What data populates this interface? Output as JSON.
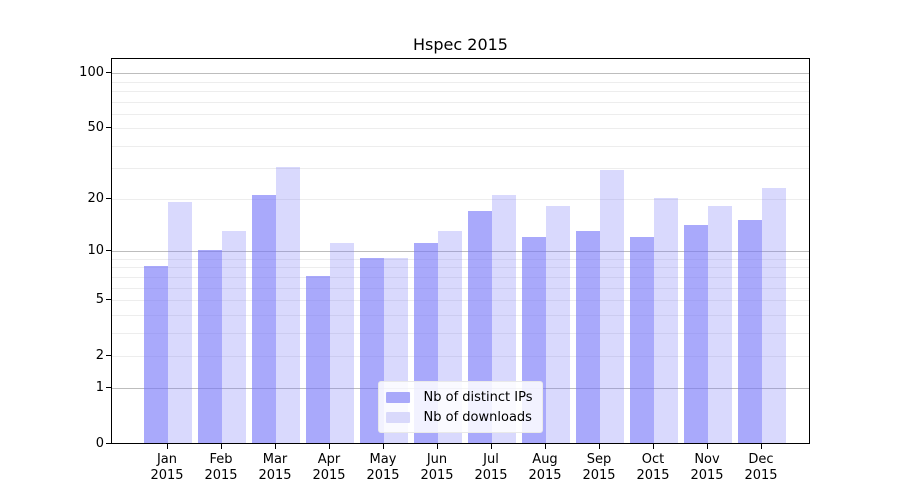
{
  "title": "Hspec 2015",
  "colors": {
    "series1_fill": "rgba(116,116,249,0.62)",
    "series1_solid": "#a9a9fa",
    "series2_fill": "rgba(116,116,249,0.27)",
    "series2_solid": "#d9d9fb",
    "major_gridline": "#bdbdbd",
    "minor_gridline": "#ededed",
    "axis": "#000000",
    "legend_background": "rgba(255,255,255,0.85)"
  },
  "chart_data": {
    "type": "bar",
    "title": "Hspec 2015",
    "categories": [
      "Jan 2015",
      "Feb 2015",
      "Mar 2015",
      "Apr 2015",
      "May 2015",
      "Jun 2015",
      "Jul 2015",
      "Aug 2015",
      "Sep 2015",
      "Oct 2015",
      "Nov 2015",
      "Dec 2015"
    ],
    "series": [
      {
        "name": "Nb of distinct IPs",
        "color": "#a9a9fa",
        "values": [
          8,
          10,
          21,
          7,
          9,
          11,
          17,
          12,
          13,
          12,
          14,
          15
        ]
      },
      {
        "name": "Nb of downloads",
        "color": "#d9d9fb",
        "values": [
          19,
          13,
          30,
          11,
          9,
          13,
          21,
          18,
          29,
          20,
          18,
          23
        ]
      }
    ],
    "xlabel": "",
    "ylabel": "",
    "y_axis": {
      "scale": "log10(value+1)",
      "tick_labels": [
        100,
        50,
        20,
        10,
        5,
        2,
        1,
        0
      ],
      "major_gridlines": [
        1,
        10,
        100
      ],
      "minor_gridlines": [
        2,
        3,
        4,
        5,
        6,
        7,
        8,
        9,
        20,
        30,
        40,
        50,
        60,
        70,
        80,
        90
      ],
      "ylim": [
        0,
        120
      ]
    },
    "grid": true,
    "legend_position": "bottom-center"
  }
}
